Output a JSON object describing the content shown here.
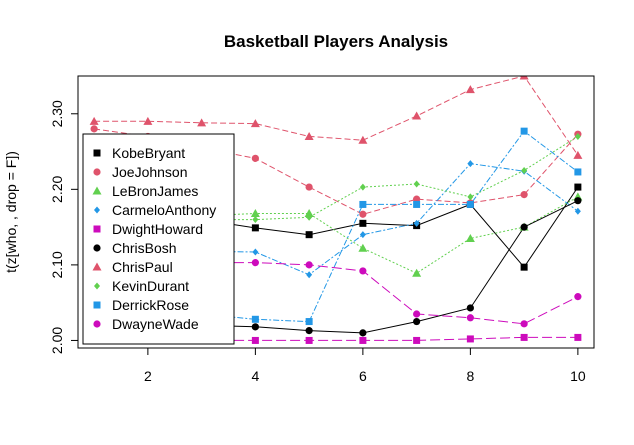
{
  "chart_data": {
    "type": "line",
    "title": "Basketball Players Analysis",
    "xlabel": "",
    "ylabel": "t(z[who, , drop = F])",
    "xlim": [
      0.7,
      10.3
    ],
    "ylim": [
      1.99,
      2.35
    ],
    "x_ticks": [
      2,
      4,
      6,
      8,
      10
    ],
    "x_tick_labels": [
      "2",
      "4",
      "6",
      "8",
      "10"
    ],
    "y_ticks": [
      2.0,
      2.1,
      2.2,
      2.3
    ],
    "y_tick_labels": [
      "2.00",
      "2.10",
      "2.20",
      "2.30"
    ],
    "grid": false,
    "legend_position": "bottom-left",
    "x": [
      1,
      2,
      3,
      4,
      5,
      6,
      7,
      8,
      9,
      10
    ],
    "series": [
      {
        "name": "KobeBryant",
        "color": "#000000",
        "marker": "square",
        "dash": "solid",
        "values": [
          2.18,
          2.17,
          2.16,
          2.149,
          2.14,
          2.155,
          2.152,
          2.18,
          2.097,
          2.203
        ]
      },
      {
        "name": "JoeJohnson",
        "color": "#DF536B",
        "marker": "circle",
        "dash": "6,3",
        "values": [
          2.28,
          2.27,
          2.255,
          2.241,
          2.203,
          2.167,
          2.187,
          2.182,
          2.193,
          2.273
        ]
      },
      {
        "name": "LeBronJames",
        "color": "#61D04F",
        "marker": "triangle",
        "dash": "2,2",
        "values": [
          2.16,
          2.165,
          2.165,
          2.168,
          2.168,
          2.122,
          2.089,
          2.135,
          2.15,
          2.19
        ]
      },
      {
        "name": "CarmeloAnthony",
        "color": "#2297E6",
        "marker": "diamond",
        "dash": "6,2,2,2",
        "values": [
          2.13,
          2.12,
          2.118,
          2.117,
          2.087,
          2.14,
          2.155,
          2.234,
          2.224,
          2.171
        ]
      },
      {
        "name": "DwightHoward",
        "color": "#CD0BBC",
        "marker": "square",
        "dash": "10,4",
        "values": [
          2.0,
          2.0,
          2.0,
          2.0,
          2.0,
          2.0,
          2.0,
          2.002,
          2.004,
          2.004
        ]
      },
      {
        "name": "ChrisBosh",
        "color": "#000000",
        "marker": "circle",
        "dash": "solid",
        "values": [
          2.03,
          2.025,
          2.02,
          2.018,
          2.013,
          2.01,
          2.025,
          2.043,
          2.15,
          2.185
        ]
      },
      {
        "name": "ChrisPaul",
        "color": "#DF536B",
        "marker": "triangle",
        "dash": "6,3",
        "values": [
          2.29,
          2.29,
          2.288,
          2.287,
          2.27,
          2.265,
          2.297,
          2.332,
          2.35,
          2.245
        ]
      },
      {
        "name": "KevinDurant",
        "color": "#61D04F",
        "marker": "diamond",
        "dash": "2,2",
        "values": [
          2.165,
          2.16,
          2.16,
          2.16,
          2.163,
          2.203,
          2.207,
          2.19,
          2.225,
          2.27
        ]
      },
      {
        "name": "DerrickRose",
        "color": "#2297E6",
        "marker": "square",
        "dash": "6,2,2,2",
        "values": [
          2.05,
          2.04,
          2.035,
          2.028,
          2.025,
          2.18,
          2.18,
          2.18,
          2.277,
          2.223
        ]
      },
      {
        "name": "DwayneWade",
        "color": "#CD0BBC",
        "marker": "circle",
        "dash": "10,4",
        "values": [
          2.11,
          2.105,
          2.103,
          2.103,
          2.1,
          2.092,
          2.035,
          2.03,
          2.022,
          2.058
        ]
      }
    ]
  }
}
